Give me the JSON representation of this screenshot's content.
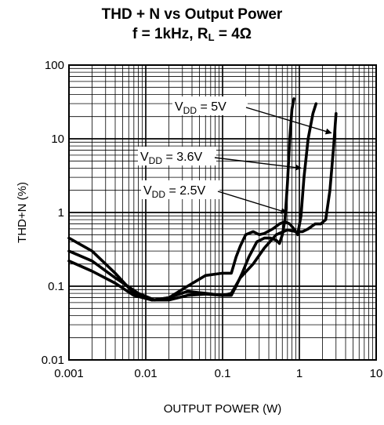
{
  "chart_data": {
    "type": "line",
    "title_line1": "THD + N vs Output Power",
    "title_line2_prefix": "f = 1kHz, R",
    "title_line2_sub": "L",
    "title_line2_suffix": " = 4Ω",
    "xlabel": "OUTPUT POWER (W)",
    "ylabel": "THD+N (%)",
    "x_scale": "log",
    "y_scale": "log",
    "xlim": [
      0.001,
      10
    ],
    "ylim": [
      0.01,
      100
    ],
    "x_ticks": [
      "0.001",
      "0.01",
      "0.1",
      "1",
      "10"
    ],
    "y_ticks": [
      "0.01",
      "0.1",
      "1",
      "10",
      "100"
    ],
    "grid": true,
    "series": [
      {
        "name": "VDD = 5V",
        "label_main": "V",
        "label_sub": "DD",
        "label_rest": " = 5V",
        "x": [
          0.001,
          0.002,
          0.004,
          0.008,
          0.013,
          0.02,
          0.035,
          0.06,
          0.1,
          0.13,
          0.17,
          0.25,
          0.35,
          0.5,
          0.7,
          0.9,
          1.1,
          1.3,
          1.6,
          1.9,
          2.2,
          2.5,
          2.8,
          3.0
        ],
        "y": [
          0.3,
          0.22,
          0.13,
          0.08,
          0.065,
          0.07,
          0.085,
          0.08,
          0.075,
          0.08,
          0.13,
          0.2,
          0.33,
          0.5,
          0.58,
          0.55,
          0.55,
          0.6,
          0.7,
          0.7,
          0.8,
          2.0,
          8.0,
          22.0
        ]
      },
      {
        "name": "VDD = 3.6V",
        "label_main": "V",
        "label_sub": "DD",
        "label_rest": " = 3.6V",
        "x": [
          0.001,
          0.002,
          0.004,
          0.007,
          0.012,
          0.02,
          0.035,
          0.06,
          0.1,
          0.13,
          0.15,
          0.17,
          0.2,
          0.25,
          0.3,
          0.35,
          0.45,
          0.55,
          0.65,
          0.75,
          0.85,
          0.95,
          1.05,
          1.15,
          1.3,
          1.5,
          1.65
        ],
        "y": [
          0.45,
          0.3,
          0.15,
          0.08,
          0.065,
          0.07,
          0.1,
          0.14,
          0.15,
          0.15,
          0.25,
          0.35,
          0.5,
          0.55,
          0.5,
          0.52,
          0.6,
          0.7,
          0.75,
          0.7,
          0.6,
          0.5,
          0.9,
          3.0,
          10.0,
          22.0,
          30.0
        ]
      },
      {
        "name": "VDD = 2.5V",
        "label_main": "V",
        "label_sub": "DD",
        "label_rest": " = 2.5V",
        "x": [
          0.001,
          0.002,
          0.004,
          0.007,
          0.012,
          0.02,
          0.035,
          0.06,
          0.1,
          0.13,
          0.15,
          0.18,
          0.22,
          0.28,
          0.35,
          0.42,
          0.5,
          0.55,
          0.6,
          0.65,
          0.7,
          0.75,
          0.8,
          0.85
        ],
        "y": [
          0.22,
          0.16,
          0.11,
          0.075,
          0.065,
          0.065,
          0.075,
          0.078,
          0.075,
          0.075,
          0.1,
          0.15,
          0.25,
          0.4,
          0.45,
          0.45,
          0.42,
          0.38,
          0.5,
          0.8,
          2.5,
          10.0,
          25.0,
          35.0
        ]
      }
    ],
    "annotations": [
      {
        "series": 0,
        "at_x": 2.6,
        "at_y": 12.0
      },
      {
        "series": 1,
        "at_x": 1.05,
        "at_y": 4.0
      },
      {
        "series": 2,
        "at_x": 0.68,
        "at_y": 1.0
      }
    ]
  }
}
